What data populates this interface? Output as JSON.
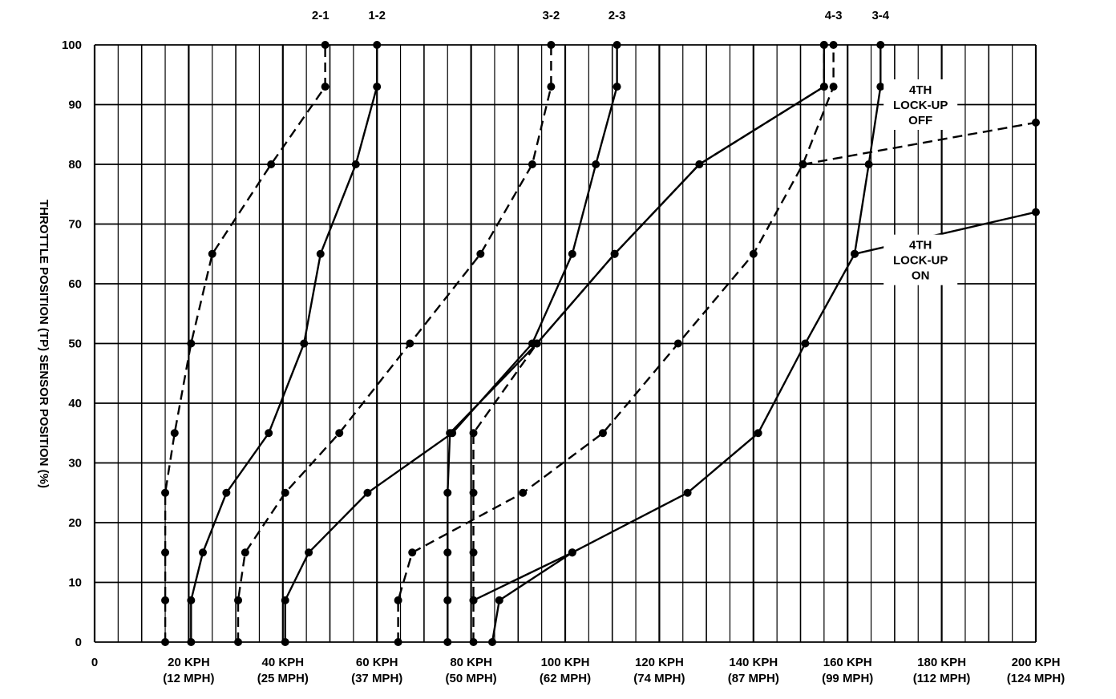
{
  "chart_data": {
    "type": "line",
    "title": "",
    "ylabel": "THROTTLE POSITION (TP) SENSOR POSITION (%)",
    "xlabel": "",
    "xlim": [
      0,
      200
    ],
    "ylim": [
      0,
      100
    ],
    "x_unit": "KPH",
    "grid": true,
    "x_ticks": [
      {
        "value": 0,
        "label": "0",
        "sub": ""
      },
      {
        "value": 20,
        "label": "20 KPH",
        "sub": "(12 MPH)"
      },
      {
        "value": 40,
        "label": "40 KPH",
        "sub": "(25 MPH)"
      },
      {
        "value": 60,
        "label": "60 KPH",
        "sub": "(37 MPH)"
      },
      {
        "value": 80,
        "label": "80 KPH",
        "sub": "(50 MPH)"
      },
      {
        "value": 100,
        "label": "100 KPH",
        "sub": "(62 MPH)"
      },
      {
        "value": 120,
        "label": "120 KPH",
        "sub": "(74 MPH)"
      },
      {
        "value": 140,
        "label": "140 KPH",
        "sub": "(87 MPH)"
      },
      {
        "value": 160,
        "label": "160 KPH",
        "sub": "(99 MPH)"
      },
      {
        "value": 180,
        "label": "180 KPH",
        "sub": "(112 MPH)"
      },
      {
        "value": 200,
        "label": "200 KPH",
        "sub": "(124 MPH)"
      }
    ],
    "y_ticks": [
      0,
      10,
      20,
      30,
      40,
      50,
      60,
      70,
      80,
      90,
      100
    ],
    "series": [
      {
        "name": "2-1",
        "style": "dashed",
        "points": [
          [
            15,
            0
          ],
          [
            15,
            7
          ],
          [
            15,
            15
          ],
          [
            15,
            25
          ],
          [
            17,
            35
          ],
          [
            20.5,
            50
          ],
          [
            25,
            65
          ],
          [
            37.5,
            80
          ],
          [
            49,
            93
          ],
          [
            49,
            100
          ]
        ]
      },
      {
        "name": "1-2",
        "style": "solid",
        "points": [
          [
            20.5,
            0
          ],
          [
            20.5,
            7
          ],
          [
            23,
            15
          ],
          [
            28,
            25
          ],
          [
            37,
            35
          ],
          [
            44.5,
            50
          ],
          [
            48,
            65
          ],
          [
            55.5,
            80
          ],
          [
            60,
            93
          ],
          [
            60,
            100
          ]
        ]
      },
      {
        "name": "",
        "style": "dashed",
        "points": [
          [
            30.5,
            0
          ],
          [
            30.5,
            7
          ],
          [
            32,
            15
          ],
          [
            40.5,
            25
          ],
          [
            52,
            35
          ],
          [
            67,
            50
          ],
          [
            82,
            65
          ],
          [
            93,
            80
          ],
          [
            97,
            93
          ],
          [
            97,
            100
          ]
        ]
      },
      {
        "name": "",
        "style": "solid",
        "points": [
          [
            40.5,
            0
          ],
          [
            40.5,
            7
          ],
          [
            45.5,
            15
          ],
          [
            58,
            25
          ],
          [
            76,
            35
          ],
          [
            93,
            50
          ],
          [
            101.5,
            65
          ],
          [
            106.5,
            80
          ],
          [
            111,
            93
          ],
          [
            111,
            100
          ]
        ]
      },
      {
        "name": "3-2",
        "style": "dashed",
        "points": [
          [
            64.5,
            0
          ],
          [
            64.5,
            7
          ],
          [
            67.5,
            15
          ],
          [
            91,
            25
          ],
          [
            108,
            35
          ],
          [
            124,
            50
          ],
          [
            140,
            65
          ],
          [
            150.5,
            80
          ],
          [
            157,
            93
          ],
          [
            157,
            100
          ]
        ]
      },
      {
        "name": "2-3",
        "style": "solid",
        "points": [
          [
            75,
            0
          ],
          [
            75,
            7
          ],
          [
            75,
            15
          ],
          [
            75,
            25
          ],
          [
            75.5,
            35
          ],
          [
            94,
            50
          ],
          [
            110.5,
            65
          ],
          [
            128.5,
            80
          ],
          [
            155,
            93
          ],
          [
            155,
            100
          ]
        ]
      },
      {
        "name": "4-3",
        "style": "dashed",
        "points": [
          [
            80.5,
            0
          ],
          [
            80.5,
            7
          ],
          [
            80.5,
            15
          ],
          [
            80.5,
            25
          ],
          [
            80.5,
            35
          ],
          [
            94,
            50
          ],
          [
            110.5,
            65
          ],
          [
            128.5,
            80
          ],
          [
            155,
            93
          ],
          [
            155,
            100
          ]
        ]
      },
      {
        "name": "3-4",
        "style": "solid",
        "points": [
          [
            84.5,
            0
          ],
          [
            86,
            7
          ],
          [
            101.5,
            15
          ],
          [
            126,
            25
          ],
          [
            141,
            35
          ],
          [
            151,
            50
          ],
          [
            161.5,
            65
          ],
          [
            164.5,
            80
          ],
          [
            167,
            93
          ],
          [
            167,
            100
          ]
        ]
      },
      {
        "name": "",
        "style": "solid",
        "points": [
          [
            80.5,
            7
          ],
          [
            101.5,
            15
          ]
        ]
      },
      {
        "name": "4TH LOCK-UP OFF",
        "style": "dashed",
        "points": [
          [
            150.5,
            80
          ],
          [
            200,
            87
          ]
        ]
      },
      {
        "name": "4TH LOCK-UP ON",
        "style": "solid",
        "points": [
          [
            161.5,
            65
          ],
          [
            200,
            72
          ]
        ]
      }
    ],
    "top_labels": [
      {
        "text": "2-1",
        "x": 48
      },
      {
        "text": "1-2",
        "x": 60
      },
      {
        "text": "3-2",
        "x": 97
      },
      {
        "text": "2-3",
        "x": 111
      },
      {
        "text": "4-3",
        "x": 157
      },
      {
        "text": "3-4",
        "x": 167
      }
    ],
    "annotations": [
      {
        "lines": [
          "4TH",
          "LOCK-UP",
          "OFF"
        ],
        "x": 175.5,
        "y": 90
      },
      {
        "lines": [
          "4TH",
          "LOCK-UP",
          "ON"
        ],
        "x": 175.5,
        "y": 64
      }
    ]
  }
}
